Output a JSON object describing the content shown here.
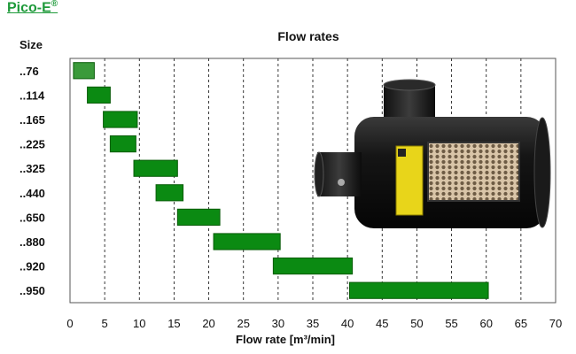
{
  "brand": {
    "name": "Pico-E",
    "mark": "®"
  },
  "chart_data": {
    "type": "bar",
    "orientation": "horizontal-range",
    "title": "Flow rates",
    "ylabel": "Size",
    "xlabel": "Flow  rate [m³/min]",
    "xlim": [
      0,
      70
    ],
    "x_ticks": [
      0,
      5,
      10,
      15,
      20,
      25,
      30,
      35,
      40,
      45,
      50,
      55,
      60,
      65,
      70
    ],
    "grid": "vertical dashed",
    "colors": {
      "first_bar": "#3a9a3a",
      "bar": "#0b8a12",
      "bar_stroke": "#0a5d0a"
    },
    "categories": [
      "..76",
      "..114",
      "..165",
      "..225",
      "..325",
      "..440",
      "..650",
      "..880",
      "..920",
      "..950"
    ],
    "ranges": [
      [
        0.5,
        3.5
      ],
      [
        2.5,
        5.8
      ],
      [
        4.8,
        9.7
      ],
      [
        5.8,
        9.5
      ],
      [
        9.2,
        15.5
      ],
      [
        12.4,
        16.3
      ],
      [
        15.5,
        21.6
      ],
      [
        20.7,
        30.3
      ],
      [
        29.3,
        40.7
      ],
      [
        40.3,
        60.3
      ]
    ],
    "image_icon": "air-filter-product-photo"
  }
}
